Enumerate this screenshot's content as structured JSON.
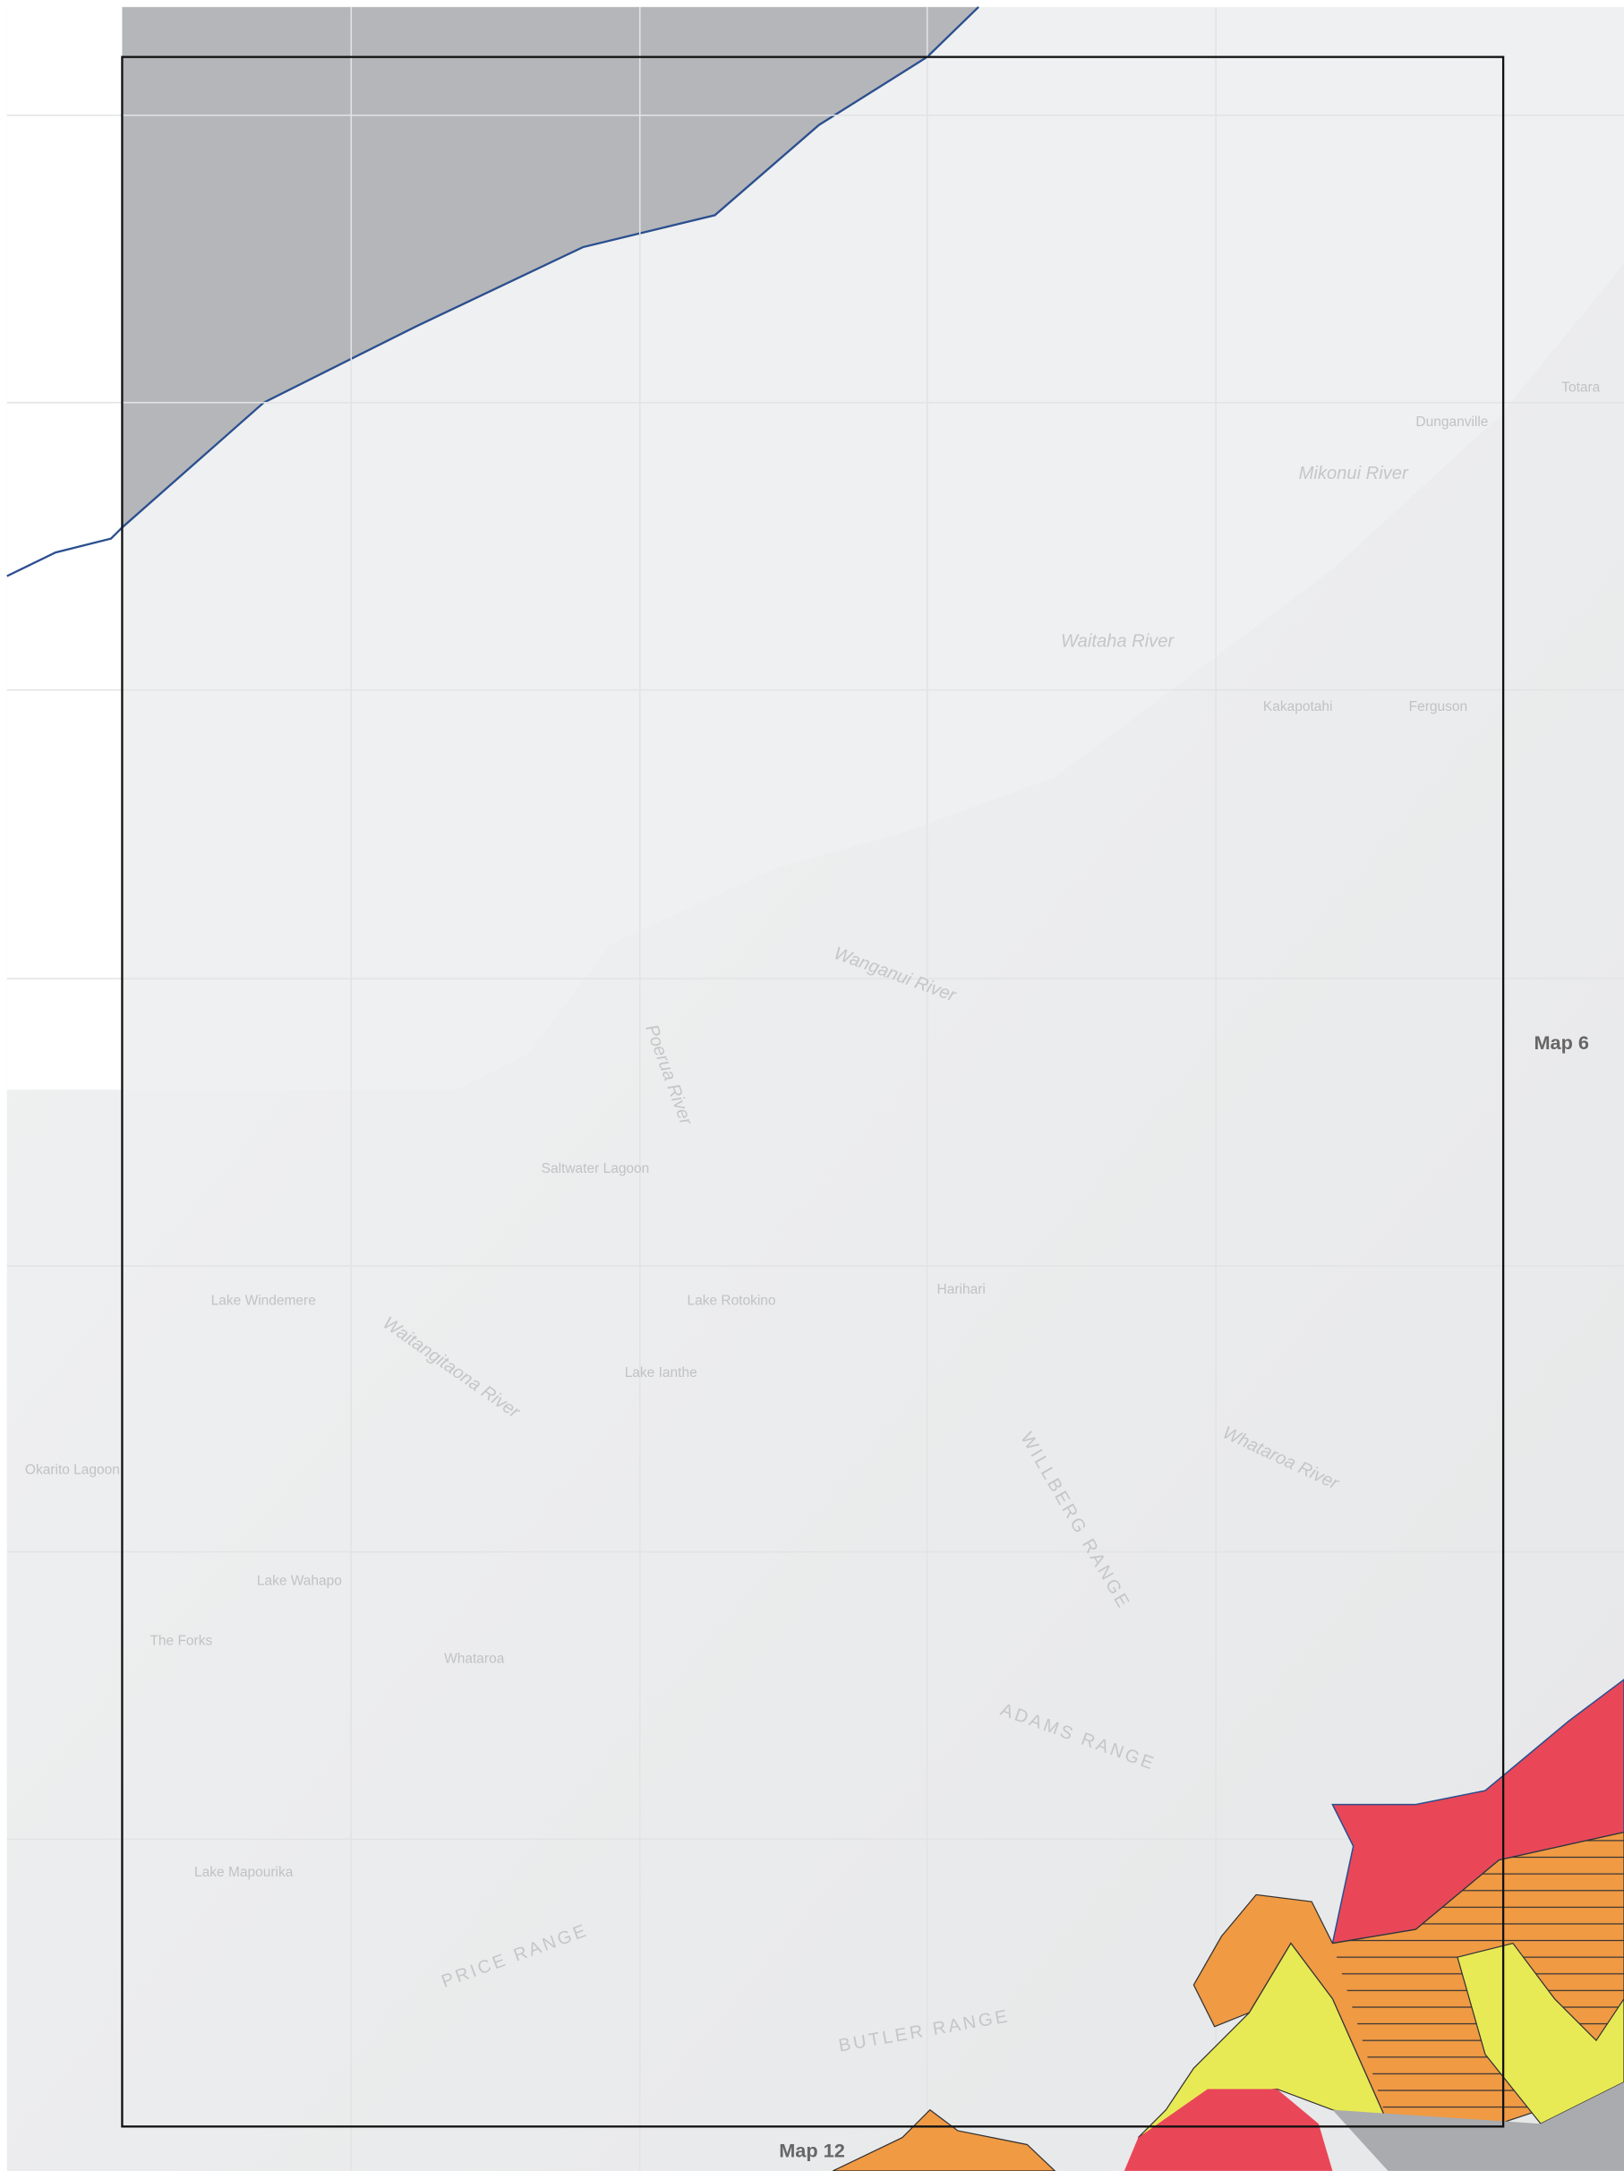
{
  "map": {
    "neighbours": {
      "east": "Map 6",
      "south": "Map 12"
    },
    "rivers": [
      "Mikonui River",
      "Waitaha River",
      "Wanganui River",
      "Poerua River",
      "Whataroa River",
      "Waitangitaona River"
    ],
    "places": [
      "Saltwater Lagoon",
      "Lake Windemere",
      "Lake Rotokino",
      "Harihari",
      "Lake Wahapo",
      "Whataroa",
      "The Forks",
      "Lake Mapourika",
      "Okarito Lagoon",
      "Lake Ianthe",
      "Ferguson",
      "Kakapotahi",
      "Dunganville",
      "Totara"
    ],
    "ranges": [
      "ADAMS RANGE",
      "PRICE RANGE",
      "BUTLER RANGE",
      "WILLBERG RANGE"
    ]
  }
}
